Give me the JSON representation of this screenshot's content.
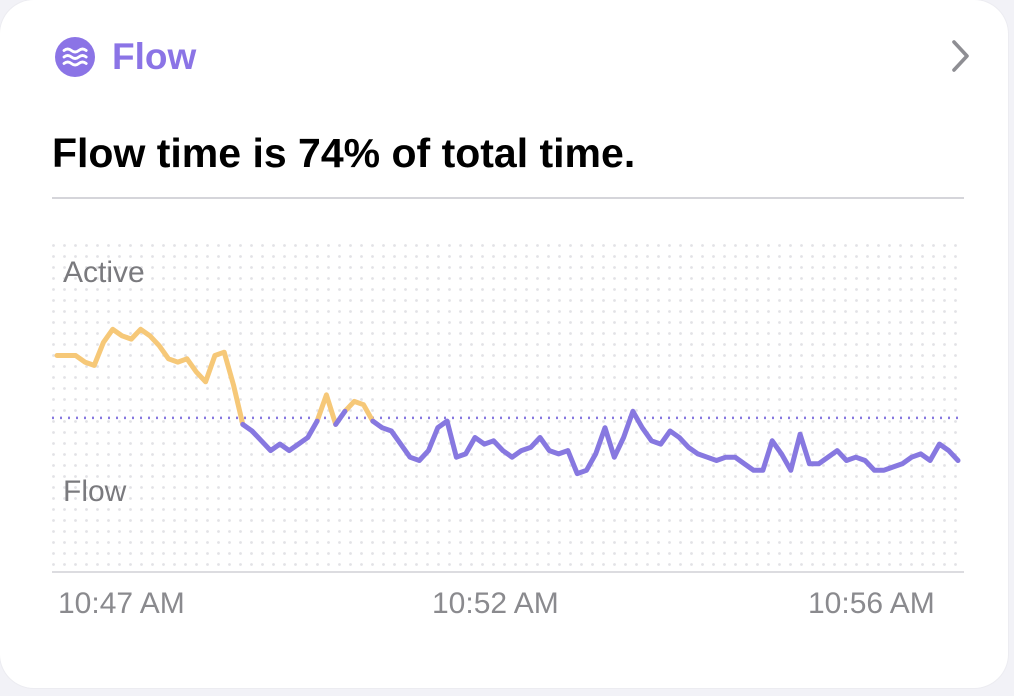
{
  "card": {
    "title": "Flow",
    "headline": "Flow time is 74% of total time.",
    "icon": "wave-icon",
    "nav_icon": "chevron-right-icon"
  },
  "colors": {
    "accent": "#8b74e6",
    "flow_line": "#8778e0",
    "active_line": "#f6c878"
  },
  "chart_data": {
    "type": "line",
    "bands": [
      "Active",
      "Flow"
    ],
    "x_ticks": [
      "10:47 AM",
      "10:52 AM",
      "10:56 AM"
    ],
    "y_range": [
      0,
      1
    ],
    "threshold": 0.47,
    "series": [
      {
        "values": [
          0.66,
          0.66,
          0.66,
          0.64,
          0.63,
          0.7,
          0.74,
          0.72,
          0.71,
          0.74,
          0.72,
          0.69,
          0.65,
          0.64,
          0.65,
          0.61,
          0.58,
          0.66,
          0.67,
          0.57,
          0.45,
          0.43,
          0.4,
          0.37,
          0.39,
          0.37,
          0.39,
          0.41,
          0.46,
          0.54,
          0.45,
          0.49,
          0.52,
          0.51,
          0.46,
          0.44,
          0.43,
          0.39,
          0.35,
          0.34,
          0.37,
          0.44,
          0.46,
          0.35,
          0.36,
          0.41,
          0.39,
          0.4,
          0.37,
          0.35,
          0.37,
          0.38,
          0.41,
          0.37,
          0.36,
          0.37,
          0.3,
          0.31,
          0.36,
          0.44,
          0.35,
          0.41,
          0.49,
          0.44,
          0.4,
          0.39,
          0.43,
          0.41,
          0.38,
          0.36,
          0.35,
          0.34,
          0.35,
          0.35,
          0.33,
          0.31,
          0.31,
          0.4,
          0.36,
          0.31,
          0.42,
          0.33,
          0.33,
          0.35,
          0.37,
          0.34,
          0.35,
          0.34,
          0.31,
          0.31,
          0.32,
          0.33,
          0.35,
          0.36,
          0.34,
          0.39,
          0.37,
          0.34
        ]
      }
    ]
  }
}
